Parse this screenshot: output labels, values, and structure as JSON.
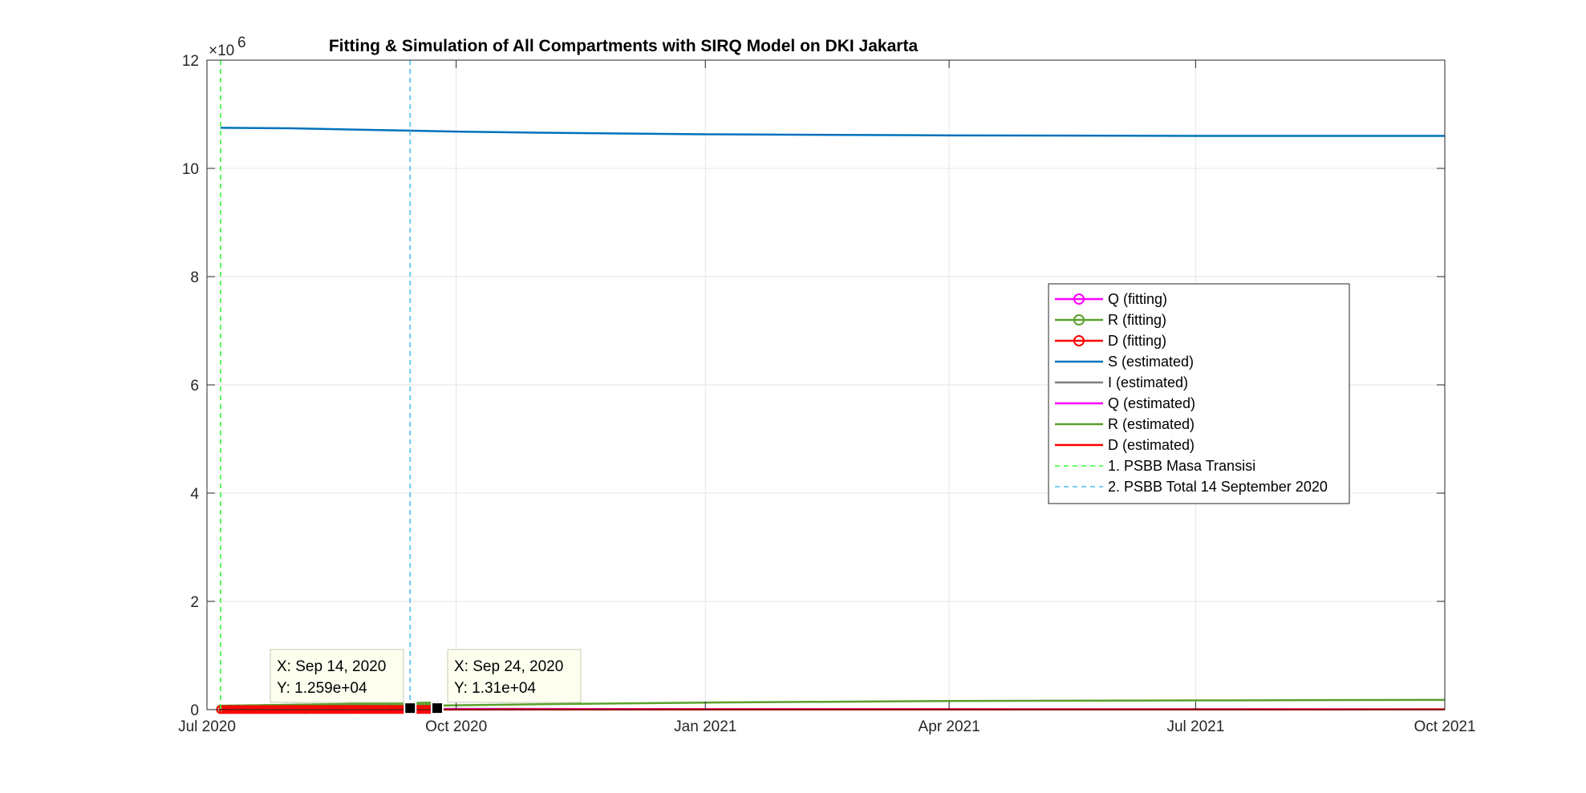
{
  "chart_data": {
    "type": "line",
    "title": "Fitting & Simulation of All Compartments with SIRQ Model on DKI Jakarta",
    "xlabel": "",
    "ylabel": "",
    "x_axis": {
      "type": "date",
      "range": [
        "2020-07-01",
        "2021-10-01"
      ],
      "ticks": [
        {
          "date": "2020-07-01",
          "label": "Jul 2020"
        },
        {
          "date": "2020-10-01",
          "label": "Oct 2020"
        },
        {
          "date": "2021-01-01",
          "label": "Jan 2021"
        },
        {
          "date": "2021-04-01",
          "label": "Apr 2021"
        },
        {
          "date": "2021-07-01",
          "label": "Jul 2021"
        },
        {
          "date": "2021-10-01",
          "label": "Oct 2021"
        }
      ]
    },
    "y_axis": {
      "range": [
        0,
        12
      ],
      "exponent_label": "×10",
      "exponent_power": "6",
      "multiplier": 1000000,
      "ticks": [
        {
          "value": 0,
          "label": "0"
        },
        {
          "value": 2,
          "label": "2"
        },
        {
          "value": 4,
          "label": "4"
        },
        {
          "value": 6,
          "label": "6"
        },
        {
          "value": 8,
          "label": "8"
        },
        {
          "value": 10,
          "label": "10"
        },
        {
          "value": 12,
          "label": "12"
        }
      ]
    },
    "grid": true,
    "legend_position": "center-right",
    "series": [
      {
        "name": "Q (fitting)",
        "color": "#FF00FF",
        "style": "marker-line",
        "x": [
          "2020-07-06",
          "2020-07-20",
          "2020-08-03",
          "2020-08-17",
          "2020-08-31",
          "2020-09-14",
          "2020-09-24"
        ],
        "y": [
          0.005,
          0.007,
          0.008,
          0.009,
          0.01,
          0.011,
          0.011
        ]
      },
      {
        "name": "R (fitting)",
        "color": "#5AA02C",
        "style": "marker-line",
        "x": [
          "2020-07-06",
          "2020-07-20",
          "2020-08-03",
          "2020-08-17",
          "2020-08-31",
          "2020-09-14",
          "2020-09-24"
        ],
        "y": [
          0.01,
          0.02,
          0.03,
          0.04,
          0.05,
          0.06,
          0.07
        ]
      },
      {
        "name": "D (fitting)",
        "color": "#FF0000",
        "style": "marker-line",
        "x": [
          "2020-07-06",
          "2020-07-20",
          "2020-08-03",
          "2020-08-17",
          "2020-08-31",
          "2020-09-14",
          "2020-09-24"
        ],
        "y": [
          0.0006,
          0.0008,
          0.001,
          0.0012,
          0.0013,
          0.0013,
          0.0013
        ]
      },
      {
        "name": "S (estimated)",
        "color": "#0072BD",
        "style": "line",
        "x": [
          "2020-07-06",
          "2020-08-01",
          "2020-09-01",
          "2020-10-01",
          "2020-11-01",
          "2021-01-01",
          "2021-04-01",
          "2021-07-01",
          "2021-10-01"
        ],
        "y": [
          10.75,
          10.74,
          10.71,
          10.68,
          10.66,
          10.63,
          10.61,
          10.6,
          10.6
        ]
      },
      {
        "name": "I (estimated)",
        "color": "#7F7F7F",
        "style": "line",
        "x": [
          "2020-07-06",
          "2020-10-01",
          "2021-01-01",
          "2021-10-01"
        ],
        "y": [
          0.01,
          0.015,
          0.01,
          0.005
        ]
      },
      {
        "name": "Q (estimated)",
        "color": "#FF00FF",
        "style": "line",
        "x": [
          "2020-07-06",
          "2020-10-01",
          "2021-01-01",
          "2021-10-01"
        ],
        "y": [
          0.005,
          0.01,
          0.008,
          0.004
        ]
      },
      {
        "name": "R (estimated)",
        "color": "#5AA02C",
        "style": "line",
        "x": [
          "2020-07-06",
          "2020-08-01",
          "2020-09-01",
          "2020-10-01",
          "2020-11-01",
          "2021-01-01",
          "2021-04-01",
          "2021-07-01",
          "2021-10-01"
        ],
        "y": [
          0.01,
          0.03,
          0.06,
          0.08,
          0.1,
          0.13,
          0.16,
          0.17,
          0.18
        ]
      },
      {
        "name": "D (estimated)",
        "color": "#FF0000",
        "style": "line",
        "x": [
          "2020-07-06",
          "2021-10-01"
        ],
        "y": [
          0.0005,
          0.003
        ]
      }
    ],
    "vertical_lines": [
      {
        "name": "1. PSBB Masa Transisi",
        "date": "2020-07-06",
        "color": "#33FF33"
      },
      {
        "name": "2. PSBB Total 14 September 2020",
        "date": "2020-09-14",
        "color": "#4DBEEE"
      }
    ],
    "datatips": [
      {
        "x_label": "X: Sep 14, 2020",
        "y_label": "Y: 1.259e+04",
        "date": "2020-09-14",
        "value": 0.01259
      },
      {
        "x_label": "X: Sep 24, 2020",
        "y_label": "Y: 1.31e+04",
        "date": "2020-09-24",
        "value": 0.0131
      }
    ]
  }
}
